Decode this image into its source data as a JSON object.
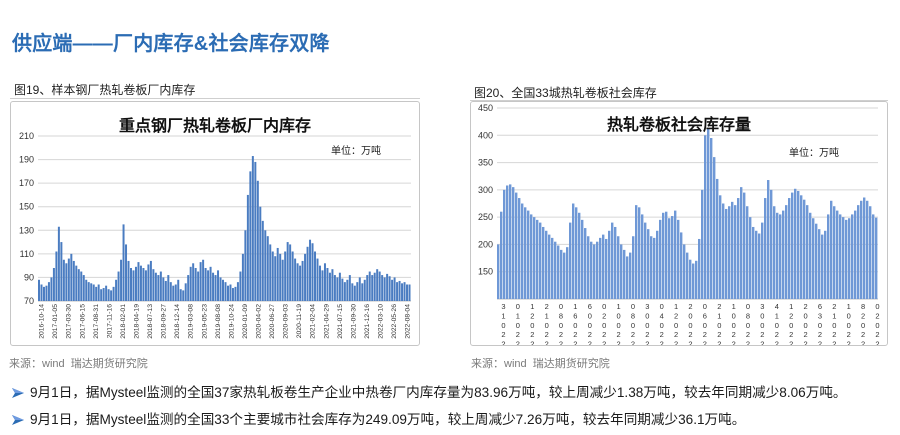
{
  "header": {
    "title": "供应端——厂内库存&社会库存双降"
  },
  "left_figure": {
    "caption": "图19、样本钢厂热轧卷板厂内库存",
    "source": "来源：wind  瑞达期货研究院"
  },
  "right_figure": {
    "caption": "图20、全国33城热轧卷板社会库存",
    "source": "来源：wind  瑞达期货研究院"
  },
  "bullets": [
    {
      "icon": "arrow-bullet-icon",
      "text": "9月1日，据Mysteel监测的全国37家热轧板卷生产企业中热卷厂内库存量为83.96万吨，较上周减少1.38万吨，较去年同期减少8.06万吨。"
    },
    {
      "icon": "arrow-bullet-icon",
      "text": "9月1日，据Mysteel监测的全国33个主要城市社会库存为249.09万吨，较上周减少7.26万吨，较去年同期减少36.1万吨。"
    }
  ],
  "colors": {
    "title": "#2b6cb4",
    "bar_left": "#4a7cc1",
    "bar_right": "#6f98d6",
    "grid": "#d6d6d6",
    "bullet_icon": "#2b6cb4"
  },
  "chart_data": [
    {
      "type": "bar",
      "title": "重点钢厂热轧卷板厂内库存",
      "unit_label": "单位：万吨",
      "ylim": [
        70,
        210
      ],
      "yticks": [
        70,
        90,
        110,
        130,
        150,
        170,
        190,
        210
      ],
      "grid": "horizontal",
      "legend": "none",
      "x_tick_labels": [
        "2016-10-14",
        "2017-01-05",
        "2017-03-30",
        "2017-06-15",
        "2017-08-31",
        "2017-11-16",
        "2018-02-01",
        "2018-04-19",
        "2018-07-13",
        "2018-09-27",
        "2018-12-14",
        "2019-03-08",
        "2019-05-23",
        "2019-08-08",
        "2019-10-24",
        "2020-01-09",
        "2020-04-02",
        "2020-06-27",
        "2020-09-03",
        "2020-11-19",
        "2021-02-04",
        "2021-04-29",
        "2021-07-15",
        "2021-09-30",
        "2021-12-16",
        "2022-03-10",
        "2022-05-26",
        "2022-08-04"
      ],
      "values": [
        88,
        84,
        82,
        83,
        86,
        90,
        98,
        112,
        133,
        120,
        105,
        102,
        106,
        110,
        104,
        100,
        97,
        95,
        92,
        88,
        86,
        85,
        84,
        82,
        84,
        80,
        81,
        83,
        80,
        79,
        82,
        88,
        95,
        105,
        135,
        118,
        104,
        98,
        96,
        99,
        103,
        100,
        98,
        96,
        101,
        104,
        97,
        94,
        92,
        95,
        90,
        87,
        92,
        86,
        83,
        84,
        88,
        80,
        79,
        85,
        92,
        99,
        102,
        98,
        95,
        103,
        105,
        98,
        96,
        99,
        94,
        92,
        96,
        90,
        88,
        86,
        83,
        84,
        81,
        82,
        86,
        95,
        110,
        130,
        160,
        180,
        193,
        188,
        172,
        150,
        138,
        130,
        125,
        118,
        112,
        108,
        115,
        110,
        105,
        112,
        120,
        118,
        112,
        106,
        102,
        100,
        104,
        110,
        116,
        122,
        119,
        112,
        106,
        100,
        96,
        102,
        98,
        94,
        97,
        92,
        90,
        94,
        89,
        86,
        88,
        92,
        85,
        83,
        86,
        90,
        85,
        88,
        92,
        95,
        92,
        94,
        97,
        95,
        92,
        90,
        93,
        91,
        88,
        90,
        86,
        87,
        85,
        86,
        84,
        84
      ]
    },
    {
      "type": "bar",
      "title": "热轧卷板社会库存量",
      "unit_label": "单位：万吨",
      "ylim": [
        100,
        450
      ],
      "yticks": [
        150,
        200,
        250,
        300,
        350,
        400,
        450
      ],
      "grid": "horizontal",
      "legend": "none",
      "x_tick_labels": [
        "31022",
        "01022",
        "12022",
        "21022",
        "08022",
        "16022",
        "60022",
        "02022",
        "10022",
        "08022",
        "30022",
        "04022",
        "12022",
        "20022",
        "06022",
        "21022",
        "10022",
        "08022",
        "30022",
        "41022",
        "12022",
        "20022",
        "63022",
        "21022",
        "10022",
        "82022",
        "02022"
      ],
      "values": [
        200,
        260,
        300,
        308,
        310,
        305,
        295,
        285,
        275,
        268,
        262,
        255,
        250,
        245,
        240,
        232,
        225,
        218,
        212,
        205,
        198,
        190,
        185,
        195,
        240,
        275,
        268,
        258,
        245,
        230,
        215,
        205,
        200,
        205,
        212,
        218,
        210,
        225,
        240,
        232,
        215,
        200,
        190,
        178,
        185,
        215,
        272,
        268,
        255,
        240,
        228,
        215,
        212,
        225,
        245,
        258,
        260,
        248,
        252,
        262,
        245,
        222,
        200,
        185,
        172,
        165,
        170,
        210,
        300,
        400,
        412,
        395,
        360,
        320,
        290,
        275,
        265,
        270,
        278,
        272,
        285,
        305,
        295,
        270,
        250,
        232,
        225,
        220,
        240,
        285,
        318,
        300,
        270,
        258,
        255,
        262,
        272,
        285,
        295,
        302,
        298,
        290,
        282,
        272,
        258,
        248,
        238,
        228,
        218,
        225,
        255,
        280,
        270,
        262,
        255,
        250,
        245,
        248,
        255,
        262,
        272,
        280,
        286,
        280,
        270,
        255,
        249
      ]
    }
  ]
}
